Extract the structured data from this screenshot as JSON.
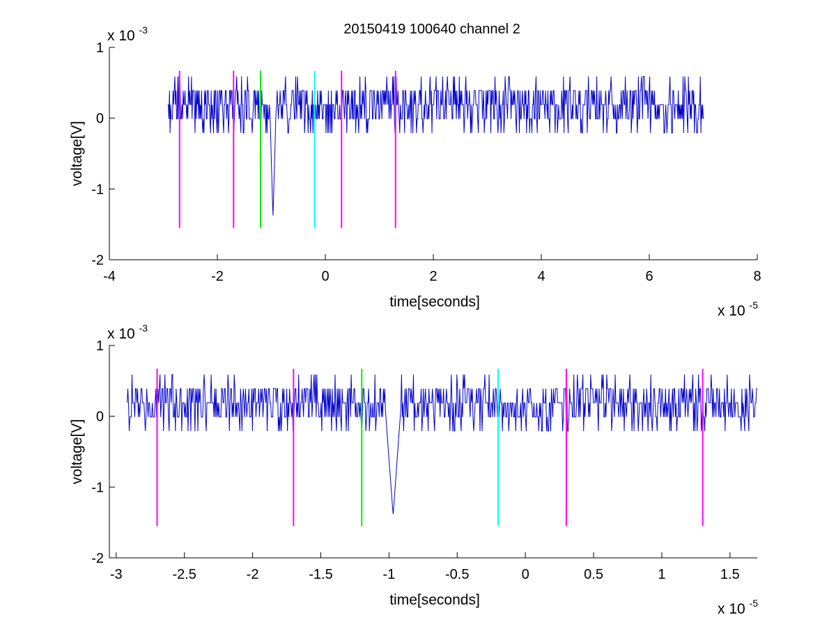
{
  "figure_title": "20150419 100640 channel 2",
  "colors": {
    "signal": "#0000cc",
    "marker_magenta": "#ff00ff",
    "marker_green": "#00ee00",
    "marker_cyan": "#00ffff",
    "axes": "#000000",
    "background": "#ffffff"
  },
  "chart_data": [
    {
      "type": "line",
      "title": "20150419 100640 channel 2",
      "xlabel": "time[seconds]",
      "ylabel": "voltage[V]",
      "x_exponent_label": "x 10",
      "x_exponent": "-5",
      "y_exponent_label": "x 10",
      "y_exponent": "-3",
      "xlim": [
        -4,
        8
      ],
      "ylim": [
        -2,
        1
      ],
      "x_ticks": [
        -4,
        -2,
        0,
        2,
        4,
        6,
        8
      ],
      "x_tick_labels": [
        "-4",
        "-2",
        "0",
        "2",
        "4",
        "6",
        "8"
      ],
      "y_ticks": [
        1,
        0,
        -1,
        -2
      ],
      "y_tick_labels": [
        "1",
        "0",
        "-1",
        "-2"
      ],
      "grid": false,
      "series": [
        {
          "signal_range": [
            -2.92,
            7.0
          ],
          "baseline": 0.19,
          "step": 0.2,
          "spike": {
            "x": -0.97,
            "y": -1.4
          }
        }
      ],
      "markers": [
        {
          "x": -2.7,
          "color": "magenta",
          "y_range": [
            -1.55,
            0.67
          ]
        },
        {
          "x": -1.7,
          "color": "magenta",
          "y_range": [
            -1.55,
            0.67
          ]
        },
        {
          "x": -1.2,
          "color": "green",
          "y_range": [
            -1.55,
            0.67
          ]
        },
        {
          "x": -0.2,
          "color": "cyan",
          "y_range": [
            -1.55,
            0.67
          ]
        },
        {
          "x": 0.3,
          "color": "magenta",
          "y_range": [
            -1.55,
            0.67
          ]
        },
        {
          "x": 1.3,
          "color": "magenta",
          "y_range": [
            -1.55,
            0.67
          ]
        }
      ]
    },
    {
      "type": "line",
      "title": "",
      "xlabel": "time[seconds]",
      "ylabel": "voltage[V]",
      "x_exponent_label": "x 10",
      "x_exponent": "-5",
      "y_exponent_label": "x 10",
      "y_exponent": "-3",
      "xlim": [
        -3.05,
        1.7
      ],
      "ylim": [
        -2,
        1
      ],
      "x_ticks": [
        -3,
        -2.5,
        -2,
        -1.5,
        -1,
        -0.5,
        0,
        0.5,
        1,
        1.5
      ],
      "x_tick_labels": [
        "-3",
        "-2.5",
        "-2",
        "-1.5",
        "-1",
        "-0.5",
        "0",
        "0.5",
        "1",
        "1.5"
      ],
      "y_ticks": [
        1,
        0,
        -1,
        -2
      ],
      "y_tick_labels": [
        "1",
        "0",
        "-1",
        "-2"
      ],
      "grid": false,
      "series": [
        {
          "signal_range": [
            -2.92,
            1.7
          ],
          "baseline": 0.19,
          "step": 0.2,
          "spike": {
            "x": -0.97,
            "y": -1.4
          }
        }
      ],
      "markers": [
        {
          "x": -2.7,
          "color": "magenta",
          "y_range": [
            -1.55,
            0.67
          ]
        },
        {
          "x": -1.7,
          "color": "magenta",
          "y_range": [
            -1.55,
            0.67
          ]
        },
        {
          "x": -1.2,
          "color": "green",
          "y_range": [
            -1.55,
            0.67
          ]
        },
        {
          "x": -0.2,
          "color": "cyan",
          "y_range": [
            -1.55,
            0.67
          ]
        },
        {
          "x": 0.3,
          "color": "magenta",
          "y_range": [
            -1.55,
            0.67
          ]
        },
        {
          "x": 1.3,
          "color": "magenta",
          "y_range": [
            -1.55,
            0.67
          ]
        }
      ]
    }
  ]
}
